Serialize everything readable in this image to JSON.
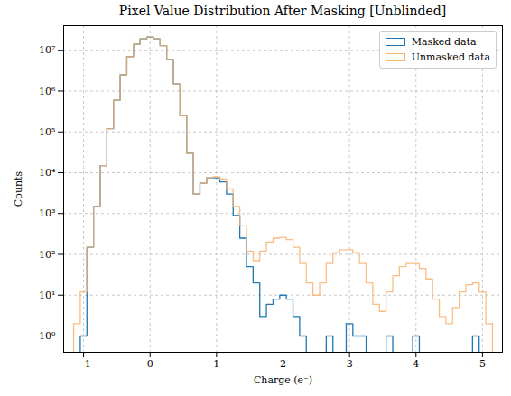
{
  "chart_data": {
    "type": "histogram",
    "title": "Pixel Value Distribution After Masking [Unblinded]",
    "x_label": "Charge (e⁻)",
    "y_label": "Counts",
    "bins": [
      -1.15,
      -1.05,
      -0.95,
      -0.85,
      -0.75,
      -0.65,
      -0.55,
      -0.45,
      -0.35,
      -0.25,
      -0.15,
      -0.05,
      0.05,
      0.15,
      0.25,
      0.35,
      0.45,
      0.55,
      0.65,
      0.75,
      0.85,
      0.95,
      1.05,
      1.15,
      1.25,
      1.35,
      1.45,
      1.55,
      1.65,
      1.75,
      1.85,
      1.95,
      2.05,
      2.15,
      2.25,
      2.35,
      2.45,
      2.55,
      2.65,
      2.75,
      2.85,
      2.95,
      3.05,
      3.15,
      3.25,
      3.35,
      3.45,
      3.55,
      3.65,
      3.75,
      3.85,
      3.95,
      4.05,
      4.15,
      4.25,
      4.35,
      4.45,
      4.55,
      4.65,
      4.75,
      4.85,
      4.95,
      5.05,
      5.15
    ],
    "series": [
      {
        "name": "Masked data",
        "color": "#1f77b4",
        "values": [
          null,
          1,
          150,
          1500,
          15000,
          120000,
          600000,
          2500000,
          7000000,
          14000000,
          19000000,
          21000000,
          19000000,
          13000000,
          6000000,
          1500000,
          250000,
          30000,
          3000,
          5500,
          7500,
          7500,
          6000,
          3000,
          900,
          250,
          50,
          20,
          3,
          6,
          8,
          10,
          8,
          3,
          1,
          null,
          null,
          null,
          1,
          null,
          null,
          2,
          1,
          1,
          null,
          null,
          null,
          1,
          null,
          null,
          null,
          1,
          null,
          null,
          null,
          null,
          null,
          null,
          null,
          null,
          1,
          null,
          null
        ]
      },
      {
        "name": "Unmasked data",
        "color": "#f7b26e",
        "values": [
          2,
          12,
          150,
          1500,
          15000,
          120000,
          600000,
          2500000,
          7000000,
          14000000,
          19000000,
          21000000,
          19000000,
          13000000,
          6000000,
          1500000,
          250000,
          30000,
          3000,
          5500,
          7500,
          8000,
          7000,
          4000,
          1500,
          500,
          120,
          70,
          120,
          200,
          250,
          260,
          230,
          150,
          60,
          20,
          10,
          20,
          60,
          110,
          130,
          130,
          110,
          60,
          20,
          6,
          4,
          12,
          30,
          50,
          60,
          60,
          45,
          25,
          8,
          3,
          2,
          5,
          12,
          18,
          20,
          12,
          2
        ]
      }
    ],
    "xlim": [
      -1.3,
      5.3
    ],
    "xticks": [
      {
        "value": -1,
        "label": "−1"
      },
      0,
      1,
      2,
      3,
      4,
      5
    ],
    "ylim": [
      0.4,
      40000000
    ],
    "yticks": [
      {
        "value": 1,
        "label": "10⁰"
      },
      {
        "value": 10,
        "label": "10¹"
      },
      {
        "value": 100,
        "label": "10²"
      },
      {
        "value": 1000,
        "label": "10³"
      },
      {
        "value": 10000,
        "label": "10⁴"
      },
      {
        "value": 100000,
        "label": "10⁵"
      },
      {
        "value": 1000000,
        "label": "10⁶"
      },
      {
        "value": 10000000,
        "label": "10⁷"
      }
    ],
    "log": "y",
    "grid": true,
    "legend": "upper right"
  }
}
